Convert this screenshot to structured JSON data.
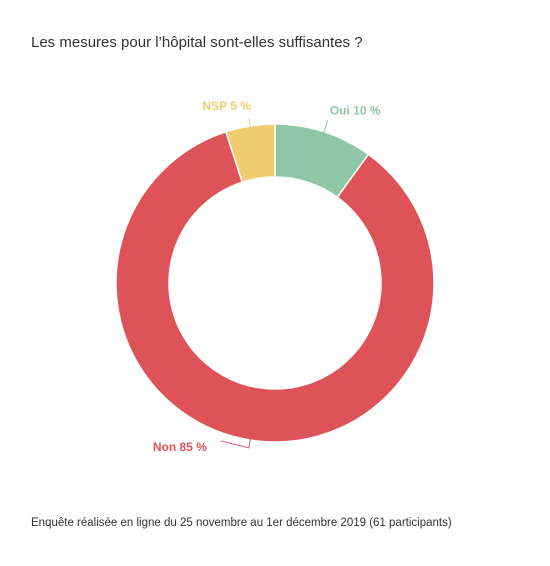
{
  "chart_data": {
    "type": "pie",
    "title": "Les mesures pour l’hôpital sont-elles suffisantes ?",
    "slices": [
      {
        "label": "Oui",
        "value": 10,
        "display": "Oui 10 %",
        "color": "#8fc6a8"
      },
      {
        "label": "Non",
        "value": 85,
        "display": "Non 85 %",
        "color": "#de5358"
      },
      {
        "label": "NSP",
        "value": 5,
        "display": "NSP 5 %",
        "color": "#f0ce6f"
      }
    ],
    "donut": true,
    "footnote": "Enquête réalisée en ligne du 25 novembre au 1er décembre 2019 (61 participants)"
  }
}
